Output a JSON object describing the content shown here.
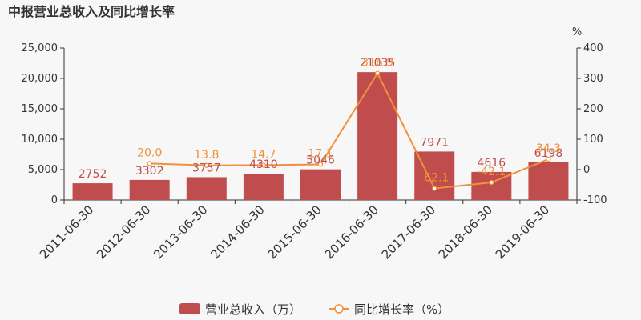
{
  "chart_data": {
    "type": "bar",
    "title": "中报营业总收入及同比增长率",
    "categories": [
      "2011-06-30",
      "2012-06-30",
      "2013-06-30",
      "2014-06-30",
      "2015-06-30",
      "2016-06-30",
      "2017-06-30",
      "2018-06-30",
      "2019-06-30"
    ],
    "series": [
      {
        "name": "营业总收入（万）",
        "type": "bar",
        "axis": "left",
        "values": [
          2752,
          3302,
          3757,
          4310,
          5046,
          21035,
          7971,
          4616,
          6198
        ],
        "labels": [
          "2752",
          "3302",
          "3757",
          "4310",
          "5046",
          "21035",
          "7971",
          "4616",
          "6198"
        ]
      },
      {
        "name": "同比增长率（%）",
        "type": "line",
        "axis": "right",
        "values": [
          null,
          20.0,
          13.8,
          14.7,
          17.1,
          316.9,
          -62.1,
          -42.1,
          34.3
        ],
        "labels": [
          "",
          "20.0",
          "13.8",
          "14.7",
          "17.1",
          "316.9",
          "-62.1",
          "-42.1",
          "34.3"
        ]
      }
    ],
    "y_left": {
      "ylim": [
        0,
        25000
      ],
      "ticks": [
        "0",
        "5,000",
        "10,000",
        "15,000",
        "20,000",
        "25,000"
      ],
      "tick_values": [
        0,
        5000,
        10000,
        15000,
        20000,
        25000
      ]
    },
    "y_right": {
      "unit": "%",
      "ylim": [
        -100,
        400
      ],
      "ticks": [
        "-100",
        "0",
        "100",
        "200",
        "300",
        "400"
      ],
      "tick_values": [
        -100,
        0,
        100,
        200,
        300,
        400
      ]
    },
    "legend": {
      "placement": "bottom"
    },
    "grid": false,
    "colors": {
      "bar": "#c04d4d",
      "line": "#f0913a"
    }
  }
}
